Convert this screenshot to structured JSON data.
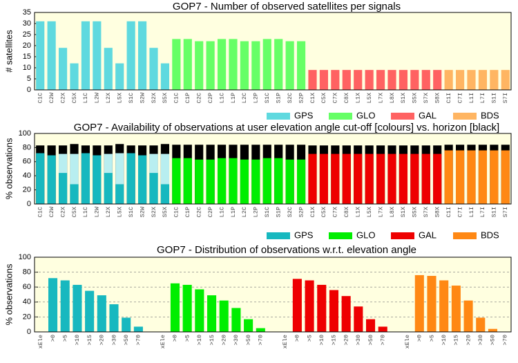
{
  "chart_data": [
    {
      "type": "bar",
      "title": "GOP7 - Number of observed satellites per signals",
      "ylabel": "# satellites",
      "ylim": [
        0,
        35
      ],
      "yticks": [
        0,
        5,
        10,
        15,
        20,
        25,
        30,
        35
      ],
      "grid": false,
      "legend": "bottom right",
      "background": "#ffffe0",
      "series": [
        {
          "name": "GPS",
          "color": "#5fd9df",
          "categories": [
            "C1C",
            "C2W",
            "C2X",
            "C5X",
            "L1C",
            "L2W",
            "L2X",
            "L5X",
            "S1C",
            "S2W",
            "S2X",
            "S5X"
          ],
          "values": [
            31,
            31,
            19,
            12,
            31,
            31,
            19,
            12,
            31,
            31,
            19,
            12
          ]
        },
        {
          "name": "GLO",
          "color": "#66ff66",
          "categories": [
            "C1C",
            "C1P",
            "C2C",
            "C2P",
            "L1C",
            "L1P",
            "L2C",
            "L2P",
            "S1C",
            "S1P",
            "S2C",
            "S2P"
          ],
          "values": [
            23,
            23,
            22,
            22,
            23,
            23,
            22,
            22,
            23,
            23,
            22,
            22
          ]
        },
        {
          "name": "GAL",
          "color": "#ff6262",
          "categories": [
            "C1X",
            "C5X",
            "C7X",
            "C8X",
            "L1X",
            "L5X",
            "L7X",
            "L8X",
            "S1X",
            "S5X",
            "S7X",
            "S8X"
          ],
          "values": [
            9,
            9,
            9,
            9,
            9,
            9,
            9,
            9,
            9,
            9,
            9,
            9
          ]
        },
        {
          "name": "BDS",
          "color": "#ffb562",
          "categories": [
            "C1I",
            "C7I",
            "L1I",
            "L7I",
            "S1I",
            "S7I"
          ],
          "values": [
            9,
            9,
            9,
            9,
            9,
            9
          ]
        }
      ]
    },
    {
      "type": "bar",
      "title": "GOP7 - Availability of observations at user elevation angle cut-off [colours] vs. horizon [black]",
      "ylabel": "% observations",
      "ylim": [
        0,
        100
      ],
      "yticks": [
        0,
        20,
        40,
        60,
        80,
        100
      ],
      "grid": false,
      "legend": "bottom right",
      "background": "#ffffe0",
      "horizon_color": "#000000",
      "series": [
        {
          "name": "GPS",
          "color": "#17b8bf",
          "light_color": "#b8eef0",
          "categories": [
            "C1C",
            "C2W",
            "C2X",
            "C5X",
            "L1C",
            "L2W",
            "L2X",
            "L5X",
            "S1C",
            "S2W",
            "S2X",
            "S5X"
          ],
          "values": [
            72,
            69,
            44,
            28,
            72,
            69,
            44,
            28,
            72,
            69,
            44,
            28
          ],
          "light_values": [
            null,
            null,
            71,
            71,
            null,
            null,
            71,
            72,
            null,
            null,
            71,
            71
          ],
          "horizon_values": [
            83,
            83,
            83,
            85,
            83,
            83,
            83,
            85,
            83,
            83,
            83,
            85
          ]
        },
        {
          "name": "GLO",
          "color": "#00ee00",
          "categories": [
            "C1C",
            "C1P",
            "C2C",
            "C2P",
            "L1C",
            "L1P",
            "L2C",
            "L2P",
            "S1C",
            "S1P",
            "S2C",
            "S2P"
          ],
          "values": [
            65,
            65,
            63,
            63,
            65,
            65,
            63,
            63,
            65,
            65,
            63,
            63
          ],
          "horizon_values": [
            84,
            84,
            84,
            84,
            84,
            84,
            84,
            84,
            84,
            84,
            84,
            84
          ]
        },
        {
          "name": "GAL",
          "color": "#ee0000",
          "categories": [
            "C1X",
            "C5X",
            "C7X",
            "C8X",
            "L1X",
            "L5X",
            "L7X",
            "L8X",
            "S1X",
            "S5X",
            "S7X",
            "S8X"
          ],
          "values": [
            71,
            71,
            71,
            71,
            71,
            71,
            71,
            71,
            71,
            71,
            71,
            71
          ],
          "horizon_values": [
            83,
            83,
            83,
            83,
            83,
            83,
            83,
            83,
            83,
            83,
            83,
            83
          ]
        },
        {
          "name": "BDS",
          "color": "#ff8814",
          "categories": [
            "C1I",
            "C7I",
            "L1I",
            "L7I",
            "S1I",
            "S7I"
          ],
          "values": [
            76,
            76,
            76,
            76,
            76,
            76
          ],
          "horizon_values": [
            84,
            84,
            84,
            84,
            84,
            84
          ]
        }
      ]
    },
    {
      "type": "bar",
      "title": "GOP7 - Distribution of observations w.r.t. elevation angle",
      "ylabel": "% observations",
      "ylim": [
        0,
        100
      ],
      "yticks": [
        0,
        20,
        40,
        60,
        80,
        100
      ],
      "grid": true,
      "background": "#ffffe0",
      "series": [
        {
          "color": "#17b8bf",
          "categories": [
            "xEle",
            ">0",
            ">5",
            ">10",
            ">15",
            ">20",
            ">30",
            ">50",
            ">70"
          ],
          "values": [
            null,
            72,
            69,
            63,
            55,
            49,
            37,
            19,
            7
          ]
        },
        {
          "color": "#00ee00",
          "categories": [
            "xEle",
            ">0",
            ">5",
            ">10",
            ">15",
            ">20",
            ">30",
            ">50",
            ">70"
          ],
          "values": [
            null,
            65,
            63,
            57,
            49,
            42,
            32,
            17,
            5
          ]
        },
        {
          "color": "#ee0000",
          "categories": [
            "xEle",
            ">0",
            ">5",
            ">10",
            ">15",
            ">20",
            ">30",
            ">50",
            ">70"
          ],
          "values": [
            null,
            71,
            69,
            63,
            56,
            48,
            34,
            17,
            7
          ]
        },
        {
          "color": "#ff8814",
          "categories": [
            "xEle",
            ">0",
            ">5",
            ">10",
            ">15",
            ">20",
            ">30",
            ">50",
            ">70"
          ],
          "values": [
            null,
            76,
            75,
            69,
            62,
            42,
            19,
            4,
            null
          ]
        }
      ]
    }
  ]
}
